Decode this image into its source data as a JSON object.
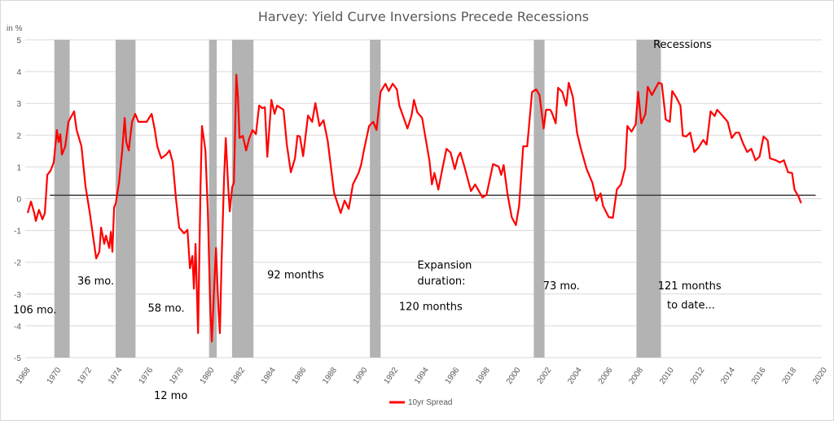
{
  "chart_data": {
    "type": "line",
    "title": "Harvey: Yield Curve Inversions Precede Recessions",
    "ylabel": "in %",
    "xlim": [
      1968,
      2020
    ],
    "ylim": [
      -5,
      5
    ],
    "y_ticks": [
      -5,
      -4,
      -3,
      -2,
      -1,
      0,
      1,
      2,
      3,
      4,
      5
    ],
    "x_ticks": [
      1968,
      1970,
      1972,
      1974,
      1976,
      1978,
      1980,
      1982,
      1984,
      1986,
      1988,
      1990,
      1992,
      1994,
      1996,
      1998,
      2000,
      2002,
      2004,
      2006,
      2008,
      2010,
      2012,
      2014,
      2016,
      2018,
      2020
    ],
    "grid": true,
    "legend_placement": "bottom",
    "reference_line": {
      "value": 0.11,
      "from": 1969.6,
      "to": 2019.6,
      "color": "#404040"
    },
    "recessions": {
      "label": "Recessions",
      "color": "#b3b3b3",
      "periods": [
        [
          1969.9,
          1970.9
        ],
        [
          1973.9,
          1975.2
        ],
        [
          1980.0,
          1980.5
        ],
        [
          1981.5,
          1982.9
        ],
        [
          1990.5,
          1991.2
        ],
        [
          2001.2,
          2001.9
        ],
        [
          2007.9,
          2009.5
        ]
      ]
    },
    "series": [
      {
        "name": "10yr Spread",
        "color": "#ff0000",
        "x": [
          1968.16,
          1968.37,
          1968.59,
          1968.69,
          1968.9,
          1969.12,
          1969.28,
          1969.44,
          1969.65,
          1969.86,
          1970.07,
          1970.18,
          1970.29,
          1970.39,
          1970.61,
          1970.82,
          1971.19,
          1971.35,
          1971.67,
          1971.94,
          1972.2,
          1972.63,
          1972.84,
          1972.95,
          1973.16,
          1973.27,
          1973.48,
          1973.59,
          1973.69,
          1973.8,
          1973.91,
          1974.12,
          1974.33,
          1974.49,
          1974.6,
          1974.76,
          1974.97,
          1975.18,
          1975.39,
          1975.66,
          1975.93,
          1976.25,
          1976.46,
          1976.62,
          1976.88,
          1977.2,
          1977.42,
          1977.63,
          1977.84,
          1978.05,
          1978.37,
          1978.59,
          1978.75,
          1978.91,
          1979.01,
          1979.12,
          1979.28,
          1979.44,
          1979.54,
          1979.76,
          1979.92,
          1980.08,
          1980.18,
          1980.34,
          1980.45,
          1980.61,
          1980.71,
          1980.82,
          1980.98,
          1981.09,
          1981.25,
          1981.35,
          1981.51,
          1981.62,
          1981.78,
          1981.89,
          1981.99,
          1982.2,
          1982.42,
          1982.63,
          1982.84,
          1983.06,
          1983.27,
          1983.48,
          1983.64,
          1983.8,
          1984.07,
          1984.28,
          1984.44,
          1984.86,
          1985.08,
          1985.34,
          1985.61,
          1985.77,
          1985.93,
          1986.14,
          1986.46,
          1986.73,
          1986.94,
          1987.21,
          1987.47,
          1987.74,
          1988.16,
          1988.59,
          1988.85,
          1989.12,
          1989.39,
          1989.76,
          1989.92,
          1990.13,
          1990.45,
          1990.72,
          1990.93,
          1991.2,
          1991.51,
          1991.73,
          1991.99,
          1992.26,
          1992.42,
          1992.95,
          1993.22,
          1993.38,
          1993.59,
          1993.91,
          1994.39,
          1994.55,
          1994.71,
          1994.97,
          1995.24,
          1995.5,
          1995.77,
          1996.04,
          1996.25,
          1996.41,
          1996.67,
          1997.1,
          1997.37,
          1997.85,
          1998.11,
          1998.54,
          1998.91,
          1999.07,
          1999.23,
          1999.49,
          1999.76,
          2000.03,
          2000.24,
          2000.51,
          2000.77,
          2001.09,
          2001.36,
          2001.57,
          2001.84,
          2002.0,
          2002.26,
          2002.37,
          2002.63,
          2002.79,
          2003.06,
          2003.32,
          2003.48,
          2003.75,
          2004.02,
          2004.28,
          2004.65,
          2005.03,
          2005.29,
          2005.56,
          2005.72,
          2006.09,
          2006.36,
          2006.62,
          2006.89,
          2007.16,
          2007.31,
          2007.58,
          2007.85,
          2008.01,
          2008.22,
          2008.49,
          2008.64,
          2008.91,
          2009.34,
          2009.55,
          2009.82,
          2010.08,
          2010.24,
          2010.51,
          2010.77,
          2010.93,
          2011.15,
          2011.41,
          2011.68,
          2011.94,
          2012.26,
          2012.48,
          2012.74,
          2013.01,
          2013.17,
          2013.54,
          2013.86,
          2014.12,
          2014.39,
          2014.6,
          2014.87,
          2015.13,
          2015.4,
          2015.67,
          2015.93,
          2016.2,
          2016.47,
          2016.62,
          2017.0,
          2017.26,
          2017.53,
          2017.8,
          2018.06,
          2018.22,
          2018.49,
          2018.65
        ],
        "y": [
          -0.45,
          -0.09,
          -0.45,
          -0.7,
          -0.35,
          -0.65,
          -0.45,
          0.75,
          0.88,
          1.14,
          2.16,
          1.78,
          2.03,
          1.39,
          1.65,
          2.42,
          2.75,
          2.17,
          1.65,
          0.37,
          -0.4,
          -1.88,
          -1.67,
          -0.91,
          -1.42,
          -1.16,
          -1.55,
          -1.04,
          -1.67,
          -0.27,
          -0.14,
          0.5,
          1.52,
          2.54,
          1.78,
          1.52,
          2.42,
          2.67,
          2.42,
          2.42,
          2.42,
          2.67,
          2.16,
          1.65,
          1.27,
          1.39,
          1.52,
          1.14,
          -0.01,
          -0.91,
          -1.09,
          -0.98,
          -2.19,
          -1.8,
          -2.83,
          -1.42,
          -4.23,
          0.37,
          2.29,
          1.52,
          -0.4,
          -3.47,
          -4.49,
          -2.7,
          -1.55,
          -3.47,
          -4.23,
          -1.93,
          0.63,
          1.91,
          0.37,
          -0.4,
          0.37,
          0.5,
          3.9,
          3.18,
          1.91,
          1.98,
          1.52,
          1.91,
          2.16,
          2.03,
          2.93,
          2.85,
          2.88,
          1.32,
          3.11,
          2.67,
          2.93,
          2.8,
          1.7,
          0.83,
          1.27,
          1.98,
          1.96,
          1.34,
          2.62,
          2.42,
          3.01,
          2.29,
          2.47,
          1.83,
          0.19,
          -0.45,
          -0.06,
          -0.32,
          0.45,
          0.81,
          1.06,
          1.57,
          2.29,
          2.42,
          2.16,
          3.36,
          3.62,
          3.39,
          3.62,
          3.44,
          2.93,
          2.21,
          2.62,
          3.11,
          2.72,
          2.54,
          1.19,
          0.45,
          0.81,
          0.29,
          0.96,
          1.57,
          1.45,
          0.93,
          1.32,
          1.45,
          1.01,
          0.24,
          0.45,
          0.04,
          0.12,
          1.09,
          1.01,
          0.75,
          1.06,
          0.12,
          -0.58,
          -0.83,
          -0.22,
          1.65,
          1.65,
          3.36,
          3.44,
          3.26,
          2.21,
          2.8,
          2.8,
          2.72,
          2.37,
          3.49,
          3.36,
          2.93,
          3.65,
          3.2,
          2.08,
          1.57,
          0.93,
          0.5,
          -0.06,
          0.17,
          -0.22,
          -0.58,
          -0.6,
          0.29,
          0.45,
          0.96,
          2.29,
          2.11,
          2.34,
          3.36,
          2.37,
          2.67,
          3.52,
          3.26,
          3.65,
          3.62,
          2.49,
          2.42,
          3.39,
          3.18,
          2.93,
          1.98,
          1.96,
          2.08,
          1.47,
          1.6,
          1.85,
          1.7,
          2.75,
          2.6,
          2.8,
          2.6,
          2.42,
          1.91,
          2.08,
          2.08,
          1.73,
          1.47,
          1.57,
          1.21,
          1.32,
          1.96,
          1.83,
          1.27,
          1.21,
          1.14,
          1.21,
          0.83,
          0.81,
          0.29,
          0.06,
          -0.14
        ]
      }
    ],
    "annotations": [
      {
        "text": "106 mo.",
        "x": 1967.2,
        "y": -3.6
      },
      {
        "text": "36 mo.",
        "x": 1971.4,
        "y": -2.7
      },
      {
        "text": "58 mo.",
        "x": 1976.0,
        "y": -3.55
      },
      {
        "text": "12 mo",
        "x": 1976.4,
        "y": -6.3
      },
      {
        "text": "92 months",
        "x": 1983.8,
        "y": -2.5
      },
      {
        "text": "Expansion",
        "x": 1993.6,
        "y": -2.2
      },
      {
        "text": "duration:",
        "x": 1993.6,
        "y": -2.7
      },
      {
        "text": "120 months",
        "x": 1992.4,
        "y": -3.5
      },
      {
        "text": "73 mo.",
        "x": 2001.8,
        "y": -2.85
      },
      {
        "text": "121 months",
        "x": 2009.3,
        "y": -2.85
      },
      {
        "text": "to date...",
        "x": 2009.9,
        "y": -3.45
      },
      {
        "text": "Recessions",
        "x": 2009.0,
        "y": 4.75
      }
    ]
  }
}
